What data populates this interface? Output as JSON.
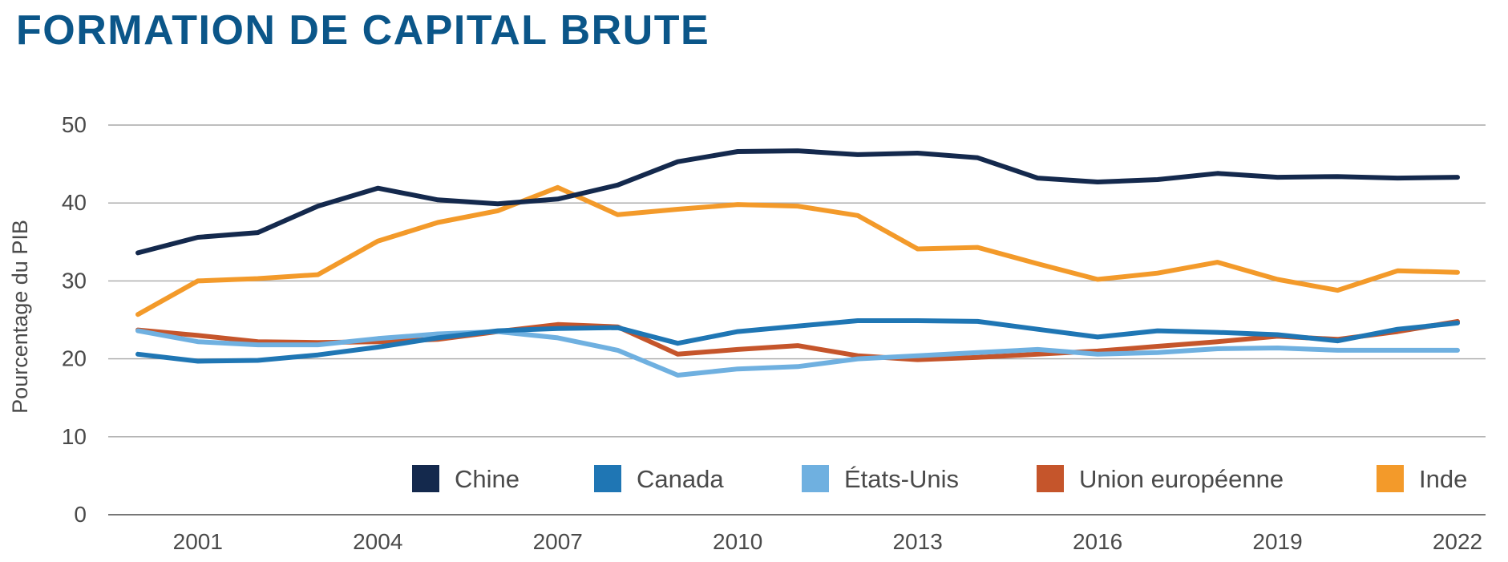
{
  "title": "FORMATION DE CAPITAL BRUTE",
  "chart_data": {
    "type": "line",
    "title": "FORMATION DE CAPITAL BRUTE",
    "xlabel": "",
    "ylabel": "Pourcentage du PIB",
    "x": [
      2000,
      2001,
      2002,
      2003,
      2004,
      2005,
      2006,
      2007,
      2008,
      2009,
      2010,
      2011,
      2012,
      2013,
      2014,
      2015,
      2016,
      2017,
      2018,
      2019,
      2020,
      2021,
      2022
    ],
    "x_tick_labels": [
      "2001",
      "2004",
      "2007",
      "2010",
      "2013",
      "2016",
      "2019",
      "2022"
    ],
    "x_ticks": [
      2001,
      2004,
      2007,
      2010,
      2013,
      2016,
      2019,
      2022
    ],
    "y_ticks": [
      0,
      10,
      20,
      30,
      40,
      50
    ],
    "y_tick_labels": [
      "0",
      "10",
      "20",
      "30",
      "40",
      "50"
    ],
    "ylim": [
      0,
      50
    ],
    "xlim": [
      2000,
      2022
    ],
    "grid": true,
    "legend_position": "bottom-right",
    "series": [
      {
        "name": "Chine",
        "color": "#14294d",
        "values": [
          33.6,
          35.6,
          36.2,
          39.6,
          41.9,
          40.4,
          39.9,
          40.5,
          42.3,
          45.3,
          46.6,
          46.7,
          46.2,
          46.4,
          45.8,
          43.2,
          42.7,
          43.0,
          43.8,
          43.3,
          43.4,
          43.2,
          43.3
        ]
      },
      {
        "name": "Canada",
        "color": "#1f76b4",
        "values": [
          20.6,
          19.7,
          19.8,
          20.5,
          21.5,
          22.7,
          23.6,
          23.9,
          24.0,
          22.0,
          23.5,
          24.2,
          24.9,
          24.9,
          24.8,
          23.8,
          22.8,
          23.6,
          23.4,
          23.1,
          22.3,
          23.8,
          24.6
        ]
      },
      {
        "name": "États-Unis",
        "color": "#6fb0e0",
        "values": [
          23.6,
          22.2,
          21.8,
          21.8,
          22.6,
          23.2,
          23.5,
          22.7,
          21.1,
          17.9,
          18.7,
          19.0,
          20.0,
          20.4,
          20.8,
          21.2,
          20.6,
          20.8,
          21.3,
          21.4,
          21.1,
          21.1,
          21.1
        ]
      },
      {
        "name": "Union européenne",
        "color": "#c5552b",
        "values": [
          23.7,
          23.0,
          22.2,
          22.1,
          22.2,
          22.5,
          23.5,
          24.4,
          24.1,
          20.6,
          21.2,
          21.7,
          20.4,
          19.9,
          20.2,
          20.6,
          21.0,
          21.6,
          22.2,
          22.9,
          22.5,
          23.5,
          24.8
        ]
      },
      {
        "name": "Inde",
        "color": "#f39a2a",
        "values": [
          25.7,
          30.0,
          30.3,
          30.8,
          35.1,
          37.5,
          39.0,
          42.0,
          38.5,
          39.2,
          39.8,
          39.6,
          38.4,
          34.1,
          34.3,
          32.2,
          30.2,
          31.0,
          32.4,
          30.2,
          28.8,
          31.3,
          31.1
        ]
      }
    ]
  }
}
